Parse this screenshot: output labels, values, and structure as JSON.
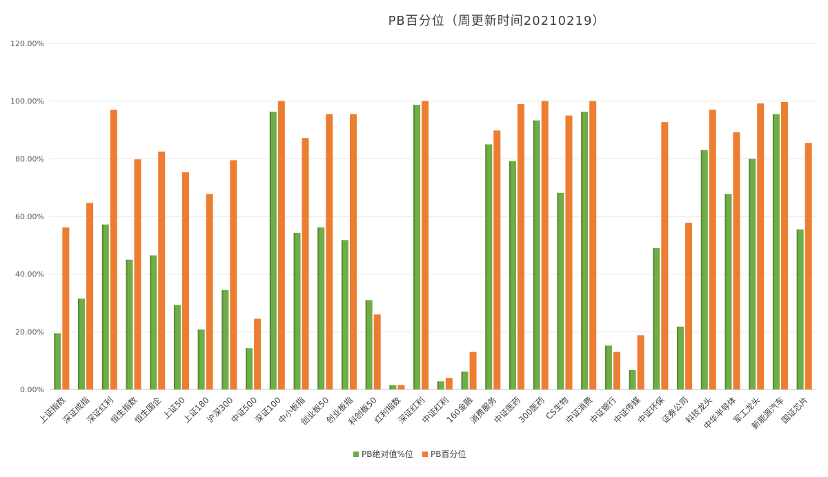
{
  "chart_data": {
    "type": "bar",
    "title": "PB百分位（周更新时间20210219）",
    "xlabel": "",
    "ylabel": "",
    "ylim": [
      0,
      120
    ],
    "yticks": [
      "0.00%",
      "20.00%",
      "40.00%",
      "60.00%",
      "80.00%",
      "100.00%",
      "120.00%"
    ],
    "grid": true,
    "legend_position": "bottom",
    "categories": [
      "上证指数",
      "深证成指",
      "深证红利",
      "恒生指数",
      "恒生国企",
      "上证50",
      "上证180",
      "沪深300",
      "中证500",
      "深证100",
      "中小板指",
      "创业板50",
      "创业板指",
      "科创板50",
      "红利指数",
      "深证红利",
      "中证红利",
      "160金融",
      "消费服务",
      "中证医药",
      "300医药",
      "CS生物",
      "中证消费",
      "中证银行",
      "中证传媒",
      "中证环保",
      "证券公司",
      "科技龙头",
      "中华半导体",
      "军工龙头",
      "新能源汽车",
      "国证芯片"
    ],
    "series": [
      {
        "name": "PB绝对值%位",
        "color": "#70ad47",
        "values": [
          19.5,
          31.5,
          57.2,
          45.0,
          46.5,
          29.3,
          20.8,
          34.5,
          14.3,
          96.3,
          54.3,
          56.2,
          51.8,
          31.0,
          1.5,
          98.7,
          2.8,
          6.2,
          85.0,
          79.2,
          93.3,
          68.2,
          96.3,
          15.2,
          6.7,
          49.0,
          21.8,
          83.0,
          67.8,
          80.0,
          95.5,
          55.5
        ]
      },
      {
        "name": "PB百分位",
        "color": "#ed7d31",
        "values": [
          56.2,
          64.7,
          97.0,
          79.8,
          82.5,
          75.3,
          67.8,
          79.5,
          24.5,
          100.0,
          87.2,
          95.5,
          95.5,
          26.0,
          1.5,
          100.0,
          4.0,
          13.0,
          89.8,
          99.0,
          100.0,
          95.0,
          100.0,
          13.0,
          18.8,
          92.7,
          57.8,
          97.0,
          89.2,
          99.2,
          99.7,
          85.5
        ]
      }
    ]
  }
}
